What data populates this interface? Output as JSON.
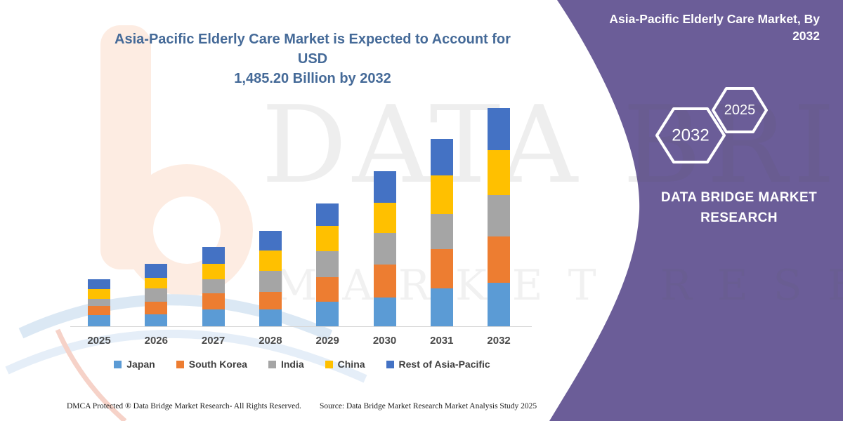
{
  "header": {
    "title_line1": "Asia-Pacific Elderly Care Market is Expected to Account for USD",
    "title_line2": "1,485.20 Billion by 2032"
  },
  "side_panel": {
    "bg_color": "#6B5D98",
    "heading_line1": "Asia-Pacific Elderly Care Market, By",
    "heading_line2": "2032",
    "hexagons": [
      {
        "label": "2032"
      },
      {
        "label": "2025"
      }
    ],
    "brand_line1": "DATA BRIDGE MARKET",
    "brand_line2": "RESEARCH"
  },
  "watermark": {
    "row1": "DATA BRIDGE",
    "row2": "MARKET RESEARCH"
  },
  "chart_data": {
    "type": "bar",
    "stacked": true,
    "unit": "USD Billion",
    "categories": [
      "2025",
      "2026",
      "2027",
      "2028",
      "2029",
      "2030",
      "2031",
      "2032"
    ],
    "series": [
      {
        "name": "Japan",
        "color": "#5B9BD5",
        "values": [
          75,
          80,
          115,
          115,
          167,
          196,
          258,
          296
        ]
      },
      {
        "name": "South Korea",
        "color": "#ED7D31",
        "values": [
          62,
          88,
          110,
          120,
          167,
          224,
          267,
          315
        ]
      },
      {
        "name": "India",
        "color": "#A5A5A5",
        "values": [
          48,
          90,
          95,
          143,
          177,
          215,
          239,
          282
        ]
      },
      {
        "name": "China",
        "color": "#FFC000",
        "values": [
          70,
          72,
          105,
          138,
          172,
          205,
          263,
          306
        ]
      },
      {
        "name": "Rest of Asia-Pacific",
        "color": "#4472C4",
        "values": [
          65,
          95,
          115,
          134,
          152,
          215,
          248,
          286.2
        ]
      }
    ],
    "totals": [
      320,
      425,
      540,
      650,
      835,
      1055,
      1275,
      1485.2
    ],
    "value_axis_max": 1485.2,
    "gridlines": false,
    "legend_position": "bottom"
  },
  "footer": {
    "dmca": "DMCA Protected ® Data Bridge Market Research- All Rights Reserved.",
    "source": "Source: Data Bridge Market Research Market Analysis Study 2025"
  }
}
